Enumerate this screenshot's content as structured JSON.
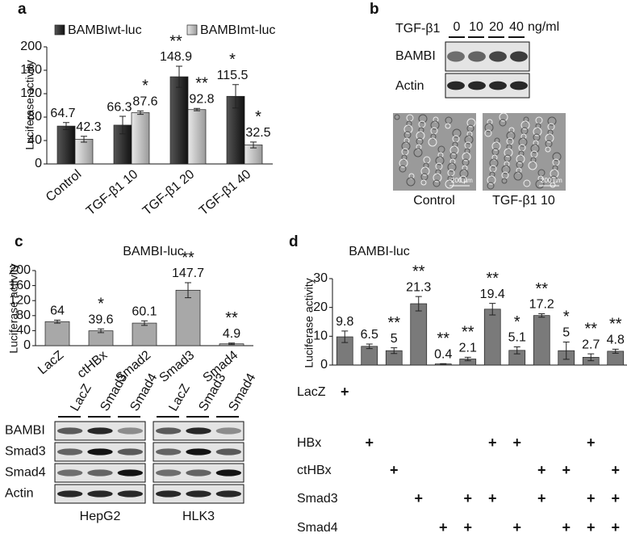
{
  "panel_labels": [
    "a",
    "b",
    "c",
    "d"
  ],
  "chart_data": [
    {
      "type": "bar",
      "y_label": "Luciferase activity",
      "categories": [
        "Control",
        "TGF-β1 10",
        "TGF-β1 20",
        "TGF-β1 40"
      ],
      "series": [
        {
          "name": "BAMBIwt-luc",
          "color": "#333333",
          "values": [
            64.7,
            66.3,
            148.9,
            115.5
          ],
          "errors": [
            6,
            15,
            18,
            20
          ],
          "annotations": [
            null,
            null,
            "**",
            "*"
          ]
        },
        {
          "name": "BAMBImt-luc",
          "color": "#c4c4c4",
          "values": [
            42.3,
            87.6,
            92.8,
            32.5
          ],
          "errors": [
            5,
            3,
            2,
            5
          ],
          "annotations": [
            null,
            "*",
            "**",
            "*"
          ]
        }
      ],
      "ylim": [
        0,
        200
      ],
      "yticks": [
        0,
        40,
        80,
        120,
        160,
        200
      ]
    },
    {
      "type": "bar",
      "title": "BAMBI-luc",
      "y_label": "Luciferase activity",
      "categories": [
        "LacZ",
        "ctHBx",
        "Smad2",
        "Smad3",
        "Smad4"
      ],
      "values": [
        64,
        39.6,
        60.1,
        147.7,
        4.9
      ],
      "errors": [
        4,
        5,
        6,
        20,
        2
      ],
      "annotations": [
        null,
        "*",
        null,
        "**",
        "**"
      ],
      "color": "#a8a8a8",
      "ylim": [
        0,
        200
      ],
      "yticks": [
        0,
        40,
        80,
        120,
        160,
        200
      ]
    },
    {
      "type": "bar",
      "title": "BAMBI-luc",
      "y_label": "Luciferase activity",
      "categories": [
        null,
        null,
        null,
        null,
        null,
        null,
        null,
        null,
        null,
        null,
        null,
        null
      ],
      "values": [
        9.8,
        6.5,
        5,
        21.3,
        0.4,
        2.1,
        19.4,
        5.1,
        17.2,
        5,
        2.7,
        4.8
      ],
      "errors": [
        2,
        0.8,
        1,
        2.5,
        0.1,
        0.6,
        2,
        1.2,
        0.6,
        3,
        1.2,
        0.7
      ],
      "annotations": [
        null,
        null,
        "**",
        "**",
        "**",
        "**",
        "**",
        "*",
        "**",
        "*",
        "**",
        "**"
      ],
      "color": "#7a7a7a",
      "ylim": [
        0,
        30
      ],
      "yticks": [
        0,
        10,
        20,
        30
      ],
      "conditions": [
        {
          "label": "LacZ",
          "marks": [
            "+",
            null,
            null,
            null,
            null,
            null,
            null,
            null,
            null,
            null,
            null,
            null
          ]
        },
        {
          "label": "HBx",
          "marks": [
            null,
            "+",
            null,
            null,
            null,
            null,
            "+",
            "+",
            null,
            null,
            "+",
            null
          ]
        },
        {
          "label": "ctHBx",
          "marks": [
            null,
            null,
            "+",
            null,
            null,
            null,
            null,
            null,
            "+",
            "+",
            null,
            "+"
          ]
        },
        {
          "label": "Smad3",
          "marks": [
            null,
            null,
            null,
            "+",
            null,
            "+",
            "+",
            null,
            "+",
            null,
            "+",
            "+"
          ]
        },
        {
          "label": "Smad4",
          "marks": [
            null,
            null,
            null,
            null,
            "+",
            "+",
            null,
            "+",
            null,
            "+",
            "+",
            "+"
          ]
        }
      ]
    }
  ],
  "blot_b": {
    "treatment": "TGF-β1",
    "doses": [
      "0",
      "10",
      "20",
      "40"
    ],
    "unit": "ng/ml",
    "rows": [
      "BAMBI",
      "Actin"
    ],
    "images": [
      "Control",
      "TGF-β1 10"
    ],
    "scale_bar": "200 µm"
  },
  "blot_c": {
    "lanes": [
      "LacZ",
      "Smad3",
      "Smad4"
    ],
    "rows": [
      "BAMBI",
      "Smad3",
      "Smad4",
      "Actin"
    ],
    "cell_lines": [
      "HepG2",
      "HLK3"
    ]
  }
}
